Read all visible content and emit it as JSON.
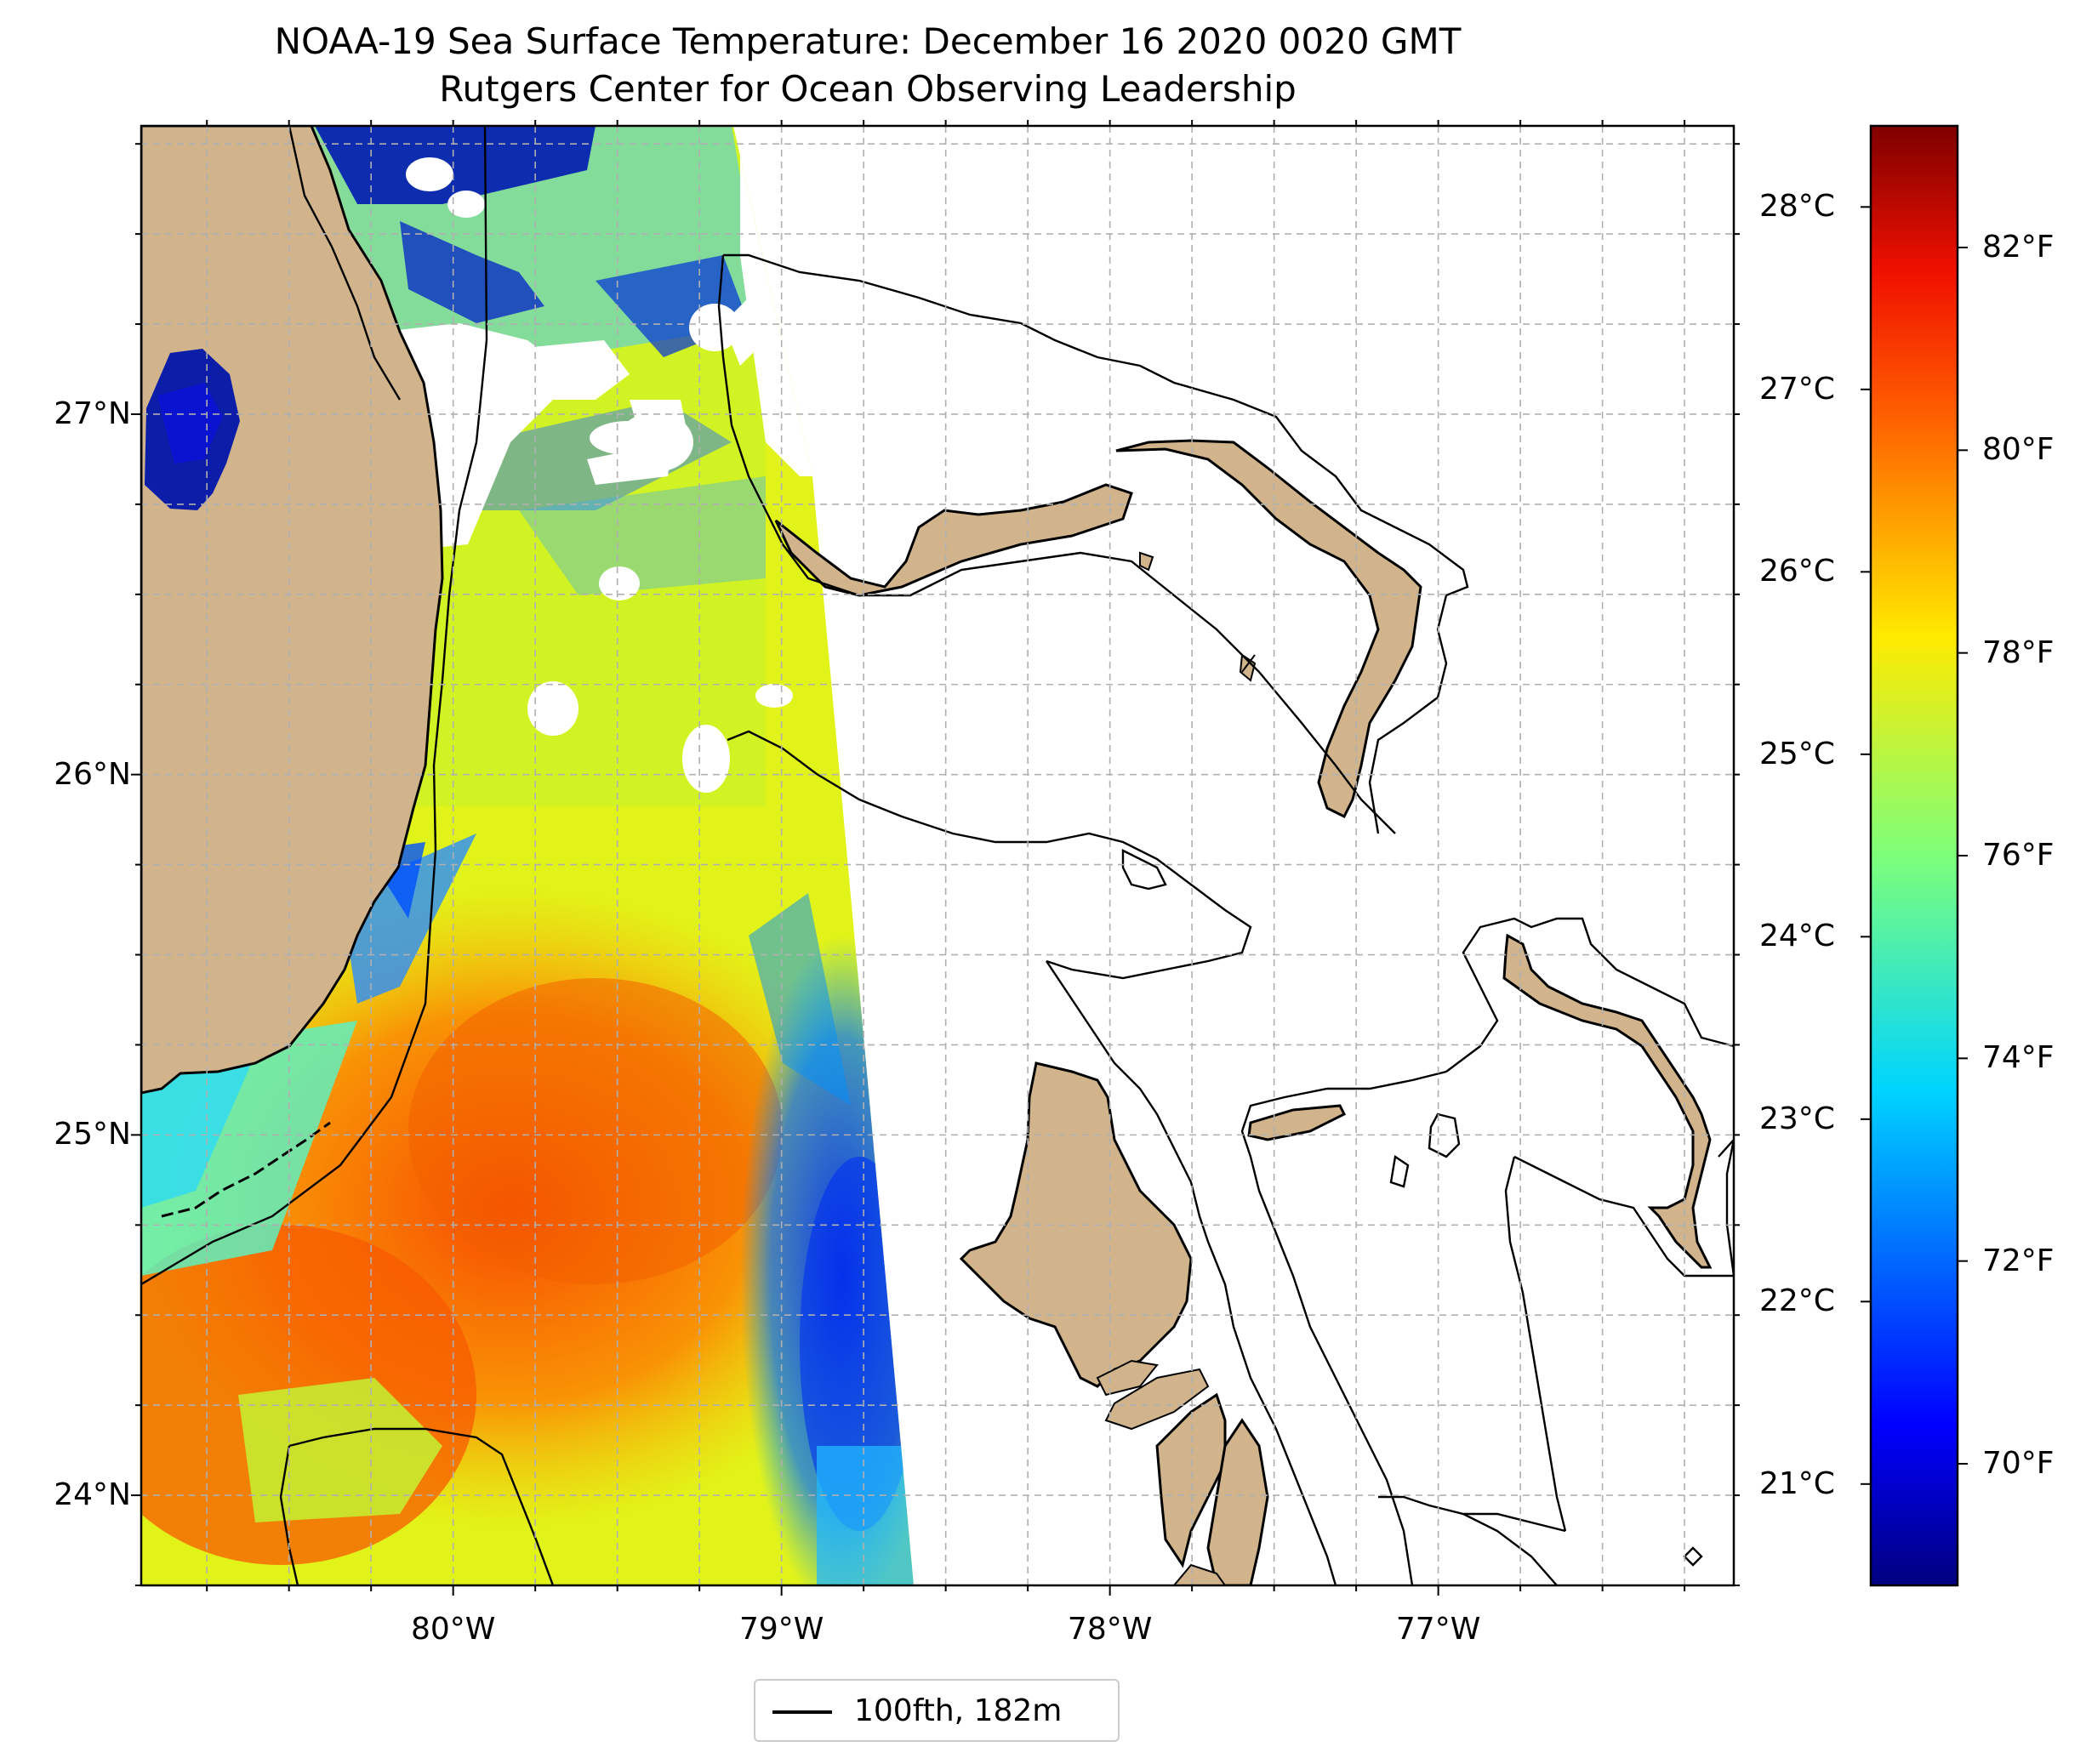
{
  "title": "NOAA-19 Sea Surface Temperature: December 16 2020 0020 GMT",
  "subtitle": "Rutgers Center for Ocean Observing Leadership",
  "map": {
    "lon_range": [
      -80.95,
      -76.1
    ],
    "lat_range": [
      23.75,
      27.8
    ],
    "lat_ticks": [
      {
        "value": 27,
        "label": "27°N"
      },
      {
        "value": 26,
        "label": "26°N"
      },
      {
        "value": 25,
        "label": "25°N"
      },
      {
        "value": 24,
        "label": "24°N"
      }
    ],
    "lon_ticks": [
      {
        "value": -80,
        "label": "80°W"
      },
      {
        "value": -79,
        "label": "79°W"
      },
      {
        "value": -78,
        "label": "78°W"
      },
      {
        "value": -77,
        "label": "77°W"
      }
    ],
    "gridlines": "dashed",
    "land_color": "#d2b48c",
    "no_data_color": "#ffffff"
  },
  "colorbar": {
    "colormap": "jet",
    "range_f": [
      68.8,
      83.2
    ],
    "celsius_ticks": [
      {
        "value": 28,
        "label": "28°C"
      },
      {
        "value": 27,
        "label": "27°C"
      },
      {
        "value": 26,
        "label": "26°C"
      },
      {
        "value": 25,
        "label": "25°C"
      },
      {
        "value": 24,
        "label": "24°C"
      },
      {
        "value": 23,
        "label": "23°C"
      },
      {
        "value": 22,
        "label": "22°C"
      },
      {
        "value": 21,
        "label": "21°C"
      }
    ],
    "fahrenheit_ticks": [
      {
        "value": 82,
        "label": "82°F"
      },
      {
        "value": 80,
        "label": "80°F"
      },
      {
        "value": 78,
        "label": "78°F"
      },
      {
        "value": 76,
        "label": "76°F"
      },
      {
        "value": 74,
        "label": "74°F"
      },
      {
        "value": 72,
        "label": "72°F"
      },
      {
        "value": 70,
        "label": "70°F"
      }
    ],
    "colors": [
      "#00007f",
      "#0000ff",
      "#0080ff",
      "#00e5f8",
      "#7dff7a",
      "#f8f500",
      "#ff8a00",
      "#f00f00",
      "#7f0000"
    ]
  },
  "legend": {
    "label": "100fth, 182m",
    "color": "#000000"
  }
}
